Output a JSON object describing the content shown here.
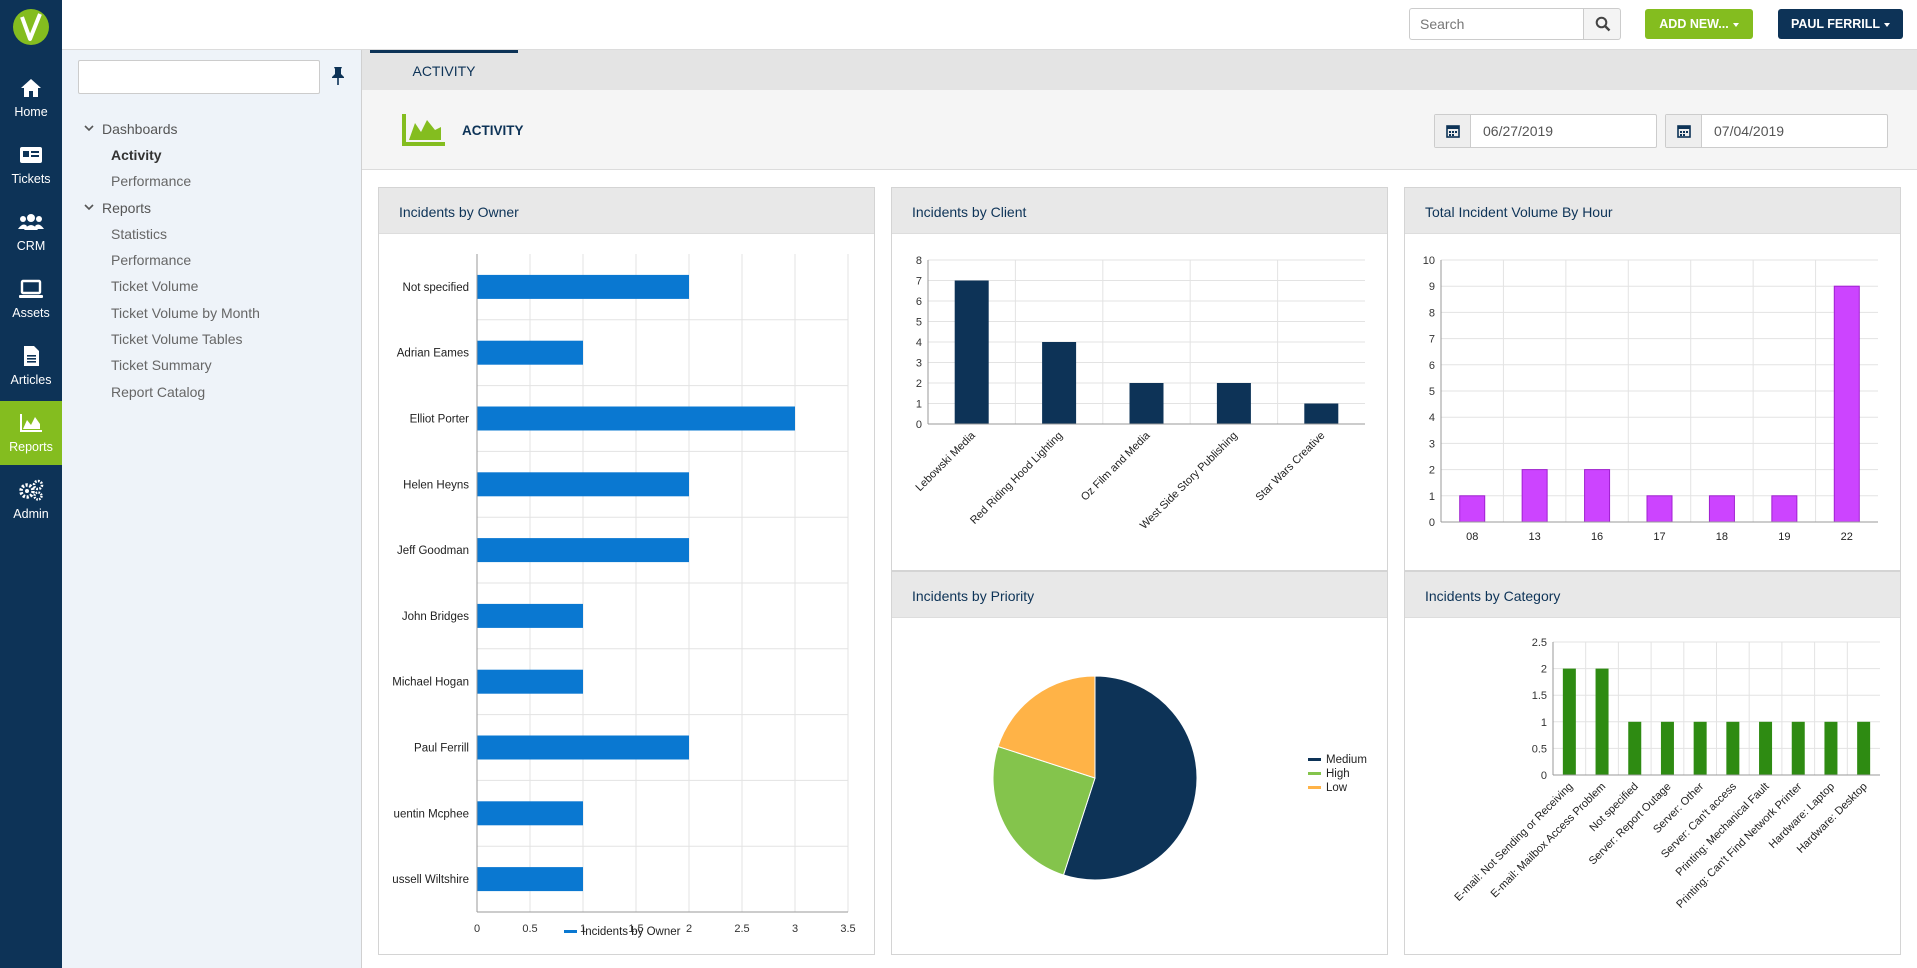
{
  "nav": {
    "items": [
      {
        "label": "Home",
        "icon": "home-icon"
      },
      {
        "label": "Tickets",
        "icon": "ticket-icon"
      },
      {
        "label": "CRM",
        "icon": "users-icon"
      },
      {
        "label": "Assets",
        "icon": "laptop-icon"
      },
      {
        "label": "Articles",
        "icon": "document-icon"
      },
      {
        "label": "Reports",
        "icon": "area-chart-icon"
      },
      {
        "label": "Admin",
        "icon": "gears-icon"
      }
    ],
    "active": "Reports"
  },
  "topbar": {
    "search_placeholder": "Search",
    "add_new_label": "ADD NEW...",
    "user_label": "PAUL FERRILL"
  },
  "sidebar": {
    "groups": [
      {
        "label": "Dashboards",
        "items": [
          "Activity",
          "Performance"
        ]
      },
      {
        "label": "Reports",
        "items": [
          "Statistics",
          "Performance",
          "Ticket Volume",
          "Ticket Volume by Month",
          "Ticket Volume Tables",
          "Ticket Summary",
          "Report Catalog"
        ]
      }
    ],
    "active_item": "Activity"
  },
  "main": {
    "tab_label": "ACTIVITY",
    "page_title": "ACTIVITY",
    "date_from": "06/27/2019",
    "date_to": "07/04/2019"
  },
  "colors": {
    "nav_bg": "#0d3357",
    "accent_green": "#84bd1f",
    "owner_bar": "#0a78d1",
    "client_bar": "#0d3357",
    "hour_bar": "#cc44ff",
    "category_bar": "#2e8b12",
    "priority_medium": "#0d3357",
    "priority_high": "#84c44c",
    "priority_low": "#ffb347"
  },
  "cards": {
    "owner_title": "Incidents by Owner",
    "client_title": "Incidents by Client",
    "hour_title": "Total Incident Volume By Hour",
    "priority_title": "Incidents by Priority",
    "category_title": "Incidents by Category"
  },
  "chart_data": [
    {
      "id": "owner",
      "type": "bar",
      "orientation": "horizontal",
      "title": "Incidents by Owner",
      "categories": [
        "Not specified",
        "Adrian Eames",
        "Elliot Porter",
        "Helen Heyns",
        "Jeff Goodman",
        "John Bridges",
        "Michael Hogan",
        "Paul Ferrill",
        "Quentin Mcphee",
        "Russell Wiltshire"
      ],
      "series": [
        {
          "name": "Incidents by Owner",
          "values": [
            2,
            1,
            3,
            2,
            2,
            1,
            1,
            2,
            1,
            1
          ]
        }
      ],
      "xlim": [
        0,
        3.5
      ],
      "ticks": [
        "0",
        "0.5",
        "1",
        "1.5",
        "2",
        "2.5",
        "3",
        "3.5"
      ],
      "legend": "bottom",
      "grid": true
    },
    {
      "id": "client",
      "type": "bar",
      "title": "Incidents by Client",
      "categories": [
        "Lebowski Media",
        "Red Riding Hood Lighting",
        "Oz Film and Media",
        "West Side Story Publishing",
        "Star Wars Creative"
      ],
      "values": [
        7,
        4,
        2,
        2,
        1
      ],
      "ylim": [
        0,
        8
      ],
      "ticks": [
        "0",
        "1",
        "2",
        "3",
        "4",
        "5",
        "6",
        "7",
        "8"
      ],
      "grid": true
    },
    {
      "id": "hour",
      "type": "bar",
      "title": "Total Incident Volume By Hour",
      "categories": [
        "08",
        "13",
        "16",
        "17",
        "18",
        "19",
        "22"
      ],
      "values": [
        1,
        2,
        2,
        1,
        1,
        1,
        9
      ],
      "ylim": [
        0,
        10
      ],
      "ticks": [
        "0",
        "1",
        "2",
        "3",
        "4",
        "5",
        "6",
        "7",
        "8",
        "9",
        "10"
      ],
      "grid": true
    },
    {
      "id": "priority",
      "type": "pie",
      "title": "Incidents by Priority",
      "labels": [
        "Medium",
        "High",
        "Low"
      ],
      "values": [
        11,
        5,
        4
      ],
      "legend": "right"
    },
    {
      "id": "category",
      "type": "bar",
      "title": "Incidents by Category",
      "categories": [
        "E-mail: Not Sending or Receiving",
        "E-mail: Mailbox Access Problem",
        "Not specified",
        "Server: Report Outage",
        "Server: Other",
        "Server: Can't access",
        "Printing: Mechanical Fault",
        "Printing: Can't Find Network Printer",
        "Hardware: Laptop",
        "Hardware: Desktop"
      ],
      "values": [
        2,
        2,
        1,
        1,
        1,
        1,
        1,
        1,
        1,
        1
      ],
      "ylim": [
        0,
        2.5
      ],
      "ticks": [
        "0",
        "0.5",
        "1",
        "1.5",
        "2",
        "2.5"
      ],
      "grid": true
    }
  ]
}
